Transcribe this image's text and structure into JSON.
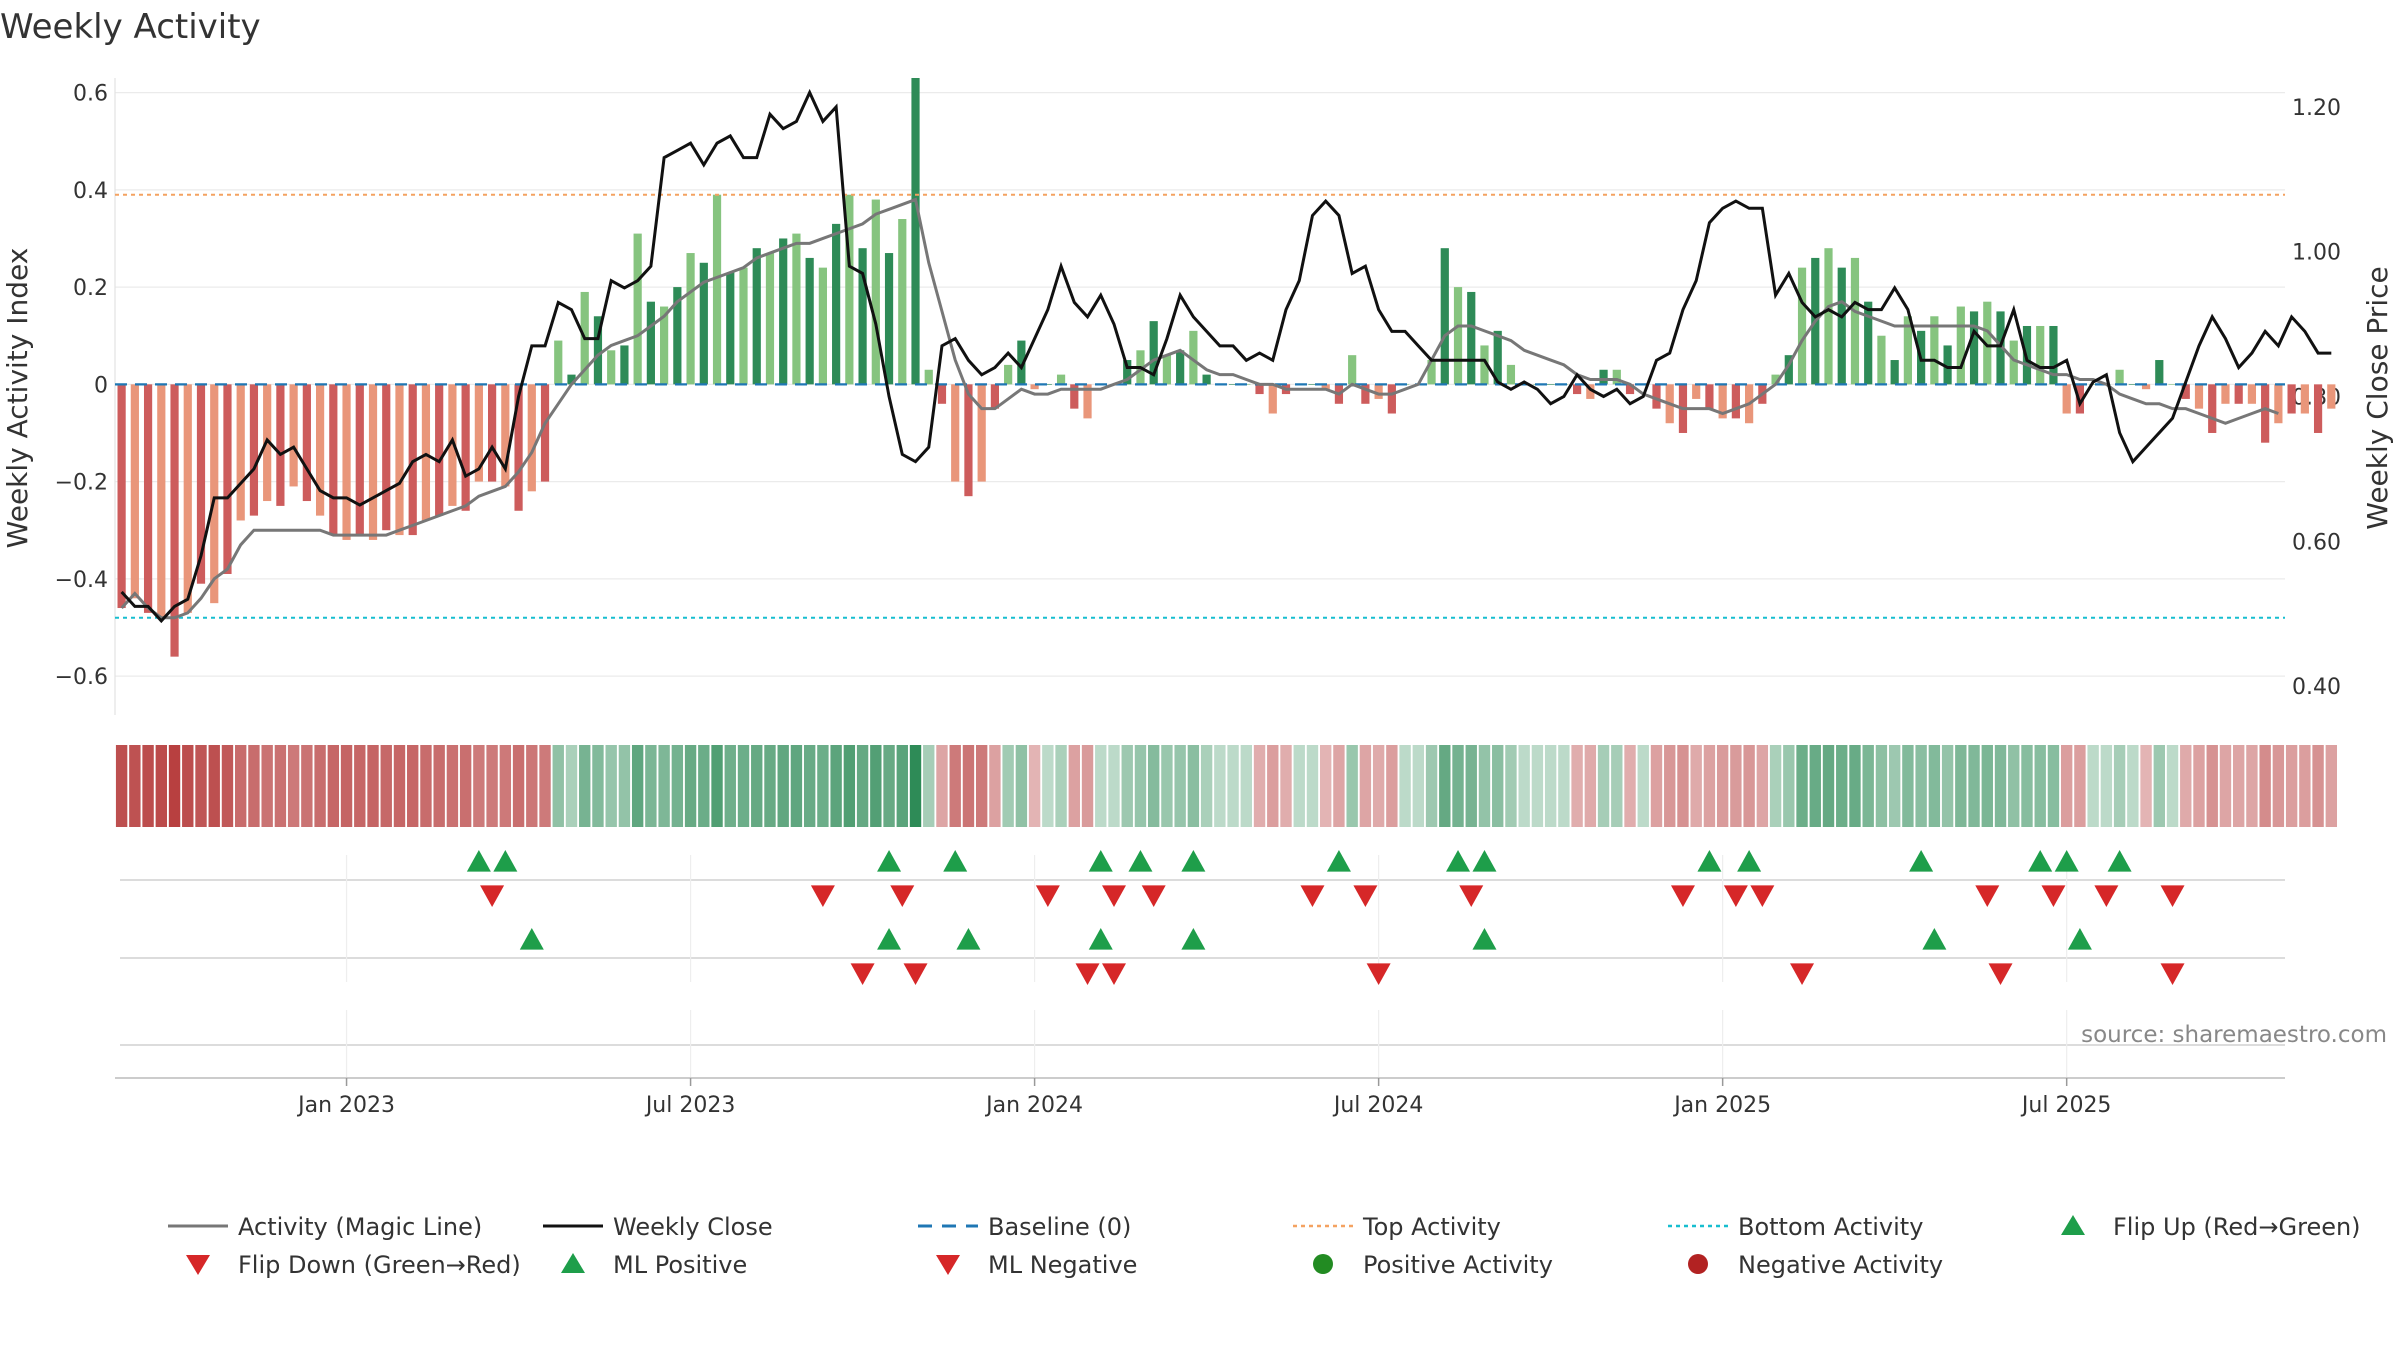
{
  "chart_data": {
    "type": "bar+line",
    "title": "Weekly Activity",
    "ylabel_left": "Weekly Activity Index",
    "ylabel_right": "Weekly Close Price",
    "ylim_left": [
      -0.68,
      0.63
    ],
    "ylim_right": [
      0.36,
      1.24
    ],
    "yticks_left": [
      0.6,
      0.4,
      0.2,
      0,
      -0.2,
      -0.4,
      -0.6
    ],
    "yticks_left_labels": [
      "0.6",
      "0.4",
      "0.2",
      "0",
      "−0.2",
      "−0.4",
      "−0.6"
    ],
    "yticks_right": [
      1.2,
      1.0,
      0.8,
      0.6,
      0.4
    ],
    "yticks_right_labels": [
      "1.20",
      "1.00",
      "0.80",
      "0.60",
      "0.40"
    ],
    "x_start": "2022-09-04",
    "weeks": 164,
    "xticks": [
      {
        "week": 17,
        "label": "Jan 2023"
      },
      {
        "week": 43,
        "label": "Jul 2023"
      },
      {
        "week": 69,
        "label": "Jan 2024"
      },
      {
        "week": 95,
        "label": "Jul 2024"
      },
      {
        "week": 121,
        "label": "Jan 2025"
      },
      {
        "week": 147,
        "label": "Jul 2025"
      }
    ],
    "activity": [
      -0.46,
      -0.44,
      -0.47,
      -0.48,
      -0.56,
      -0.47,
      -0.41,
      -0.45,
      -0.39,
      -0.28,
      -0.27,
      -0.24,
      -0.25,
      -0.21,
      -0.24,
      -0.27,
      -0.31,
      -0.32,
      -0.31,
      -0.32,
      -0.3,
      -0.31,
      -0.31,
      -0.28,
      -0.27,
      -0.25,
      -0.26,
      -0.2,
      -0.2,
      -0.21,
      -0.26,
      -0.22,
      -0.2,
      0.09,
      0.02,
      0.19,
      0.14,
      0.07,
      0.08,
      0.31,
      0.17,
      0.16,
      0.2,
      0.27,
      0.25,
      0.39,
      0.23,
      0.24,
      0.28,
      0.27,
      0.3,
      0.31,
      0.26,
      0.24,
      0.33,
      0.39,
      0.28,
      0.38,
      0.27,
      0.34,
      0.63,
      0.03,
      -0.04,
      -0.2,
      -0.23,
      -0.2,
      -0.05,
      0.04,
      0.09,
      -0.01,
      0.0,
      0.02,
      -0.05,
      -0.07,
      0.0,
      0.0,
      0.05,
      0.07,
      0.13,
      0.06,
      0.07,
      0.11,
      0.02,
      0.0,
      0.0,
      0.0,
      -0.02,
      -0.06,
      -0.02,
      0.0,
      0.0,
      -0.01,
      -0.04,
      0.06,
      -0.04,
      -0.03,
      -0.06,
      0.0,
      0.0,
      0.05,
      0.28,
      0.2,
      0.19,
      0.08,
      0.11,
      0.04,
      0.0,
      0.0,
      0.0,
      0.0,
      -0.02,
      -0.03,
      0.03,
      0.03,
      -0.02,
      0.0,
      -0.05,
      -0.08,
      -0.1,
      -0.03,
      -0.05,
      -0.07,
      -0.07,
      -0.08,
      -0.04,
      0.02,
      0.06,
      0.24,
      0.26,
      0.28,
      0.24,
      0.26,
      0.17,
      0.1,
      0.05,
      0.14,
      0.11,
      0.14,
      0.08,
      0.16,
      0.15,
      0.17,
      0.15,
      0.09,
      0.12,
      0.12,
      0.12,
      -0.06,
      -0.06,
      0.0,
      0.0,
      0.03,
      0.0,
      -0.01,
      0.05,
      0.0,
      -0.03,
      -0.05,
      -0.1,
      -0.04,
      -0.04,
      -0.04,
      -0.12,
      -0.08,
      -0.06,
      -0.06,
      -0.1,
      -0.05
    ],
    "magic_line": [
      -0.46,
      -0.43,
      -0.46,
      -0.48,
      -0.48,
      -0.47,
      -0.44,
      -0.4,
      -0.38,
      -0.33,
      -0.3,
      -0.3,
      -0.3,
      -0.3,
      -0.3,
      -0.3,
      -0.31,
      -0.31,
      -0.31,
      -0.31,
      -0.31,
      -0.3,
      -0.29,
      -0.28,
      -0.27,
      -0.26,
      -0.25,
      -0.23,
      -0.22,
      -0.21,
      -0.18,
      -0.14,
      -0.08,
      -0.04,
      0.0,
      0.03,
      0.06,
      0.08,
      0.09,
      0.1,
      0.12,
      0.14,
      0.17,
      0.19,
      0.21,
      0.22,
      0.23,
      0.24,
      0.26,
      0.27,
      0.28,
      0.29,
      0.29,
      0.3,
      0.31,
      0.32,
      0.33,
      0.35,
      0.36,
      0.37,
      0.38,
      0.25,
      0.15,
      0.05,
      -0.02,
      -0.05,
      -0.05,
      -0.03,
      -0.01,
      -0.02,
      -0.02,
      -0.01,
      -0.01,
      -0.01,
      -0.01,
      0.0,
      0.01,
      0.03,
      0.05,
      0.06,
      0.07,
      0.05,
      0.03,
      0.02,
      0.02,
      0.01,
      0.0,
      0.0,
      -0.01,
      -0.01,
      -0.01,
      -0.01,
      -0.02,
      0.0,
      -0.01,
      -0.02,
      -0.02,
      -0.01,
      0.0,
      0.05,
      0.1,
      0.12,
      0.12,
      0.11,
      0.1,
      0.09,
      0.07,
      0.06,
      0.05,
      0.04,
      0.02,
      0.01,
      0.01,
      0.01,
      0.0,
      -0.02,
      -0.03,
      -0.04,
      -0.05,
      -0.05,
      -0.05,
      -0.06,
      -0.05,
      -0.04,
      -0.02,
      0.0,
      0.04,
      0.09,
      0.13,
      0.16,
      0.17,
      0.15,
      0.14,
      0.13,
      0.12,
      0.12,
      0.12,
      0.12,
      0.12,
      0.12,
      0.12,
      0.11,
      0.08,
      0.05,
      0.04,
      0.03,
      0.02,
      0.02,
      0.01,
      0.01,
      0.0,
      -0.02,
      -0.03,
      -0.04,
      -0.04,
      -0.05,
      -0.05,
      -0.06,
      -0.07,
      -0.08,
      -0.07,
      -0.06,
      -0.05,
      -0.06
    ],
    "close": [
      0.53,
      0.51,
      0.51,
      0.49,
      0.51,
      0.52,
      0.58,
      0.66,
      0.66,
      0.68,
      0.7,
      0.74,
      0.72,
      0.73,
      0.7,
      0.67,
      0.66,
      0.66,
      0.65,
      0.66,
      0.67,
      0.68,
      0.71,
      0.72,
      0.71,
      0.74,
      0.69,
      0.7,
      0.73,
      0.7,
      0.8,
      0.87,
      0.87,
      0.93,
      0.92,
      0.88,
      0.88,
      0.96,
      0.95,
      0.96,
      0.98,
      1.13,
      1.14,
      1.15,
      1.12,
      1.15,
      1.16,
      1.13,
      1.13,
      1.19,
      1.17,
      1.18,
      1.22,
      1.18,
      1.2,
      0.98,
      0.97,
      0.9,
      0.8,
      0.72,
      0.71,
      0.73,
      0.87,
      0.88,
      0.85,
      0.83,
      0.84,
      0.86,
      0.84,
      0.88,
      0.92,
      0.98,
      0.93,
      0.91,
      0.94,
      0.9,
      0.84,
      0.84,
      0.83,
      0.88,
      0.94,
      0.91,
      0.89,
      0.87,
      0.87,
      0.85,
      0.86,
      0.85,
      0.92,
      0.96,
      1.05,
      1.07,
      1.05,
      0.97,
      0.98,
      0.92,
      0.89,
      0.89,
      0.87,
      0.85,
      0.85,
      0.85,
      0.85,
      0.85,
      0.82,
      0.81,
      0.82,
      0.81,
      0.79,
      0.8,
      0.83,
      0.81,
      0.8,
      0.81,
      0.79,
      0.8,
      0.85,
      0.86,
      0.92,
      0.96,
      1.04,
      1.06,
      1.07,
      1.06,
      1.06,
      0.94,
      0.97,
      0.93,
      0.91,
      0.92,
      0.91,
      0.93,
      0.92,
      0.92,
      0.95,
      0.92,
      0.85,
      0.85,
      0.84,
      0.84,
      0.89,
      0.87,
      0.87,
      0.92,
      0.85,
      0.84,
      0.84,
      0.85,
      0.79,
      0.82,
      0.83,
      0.75,
      0.71,
      0.73,
      0.75,
      0.77,
      0.82,
      0.87,
      0.91,
      0.88,
      0.84,
      0.86,
      0.89,
      0.87,
      0.91,
      0.89,
      0.86,
      0.86
    ],
    "baseline": 0,
    "top_activity": 0.39,
    "bottom_activity": -0.48,
    "flip_up_weeks": [
      27,
      29,
      58,
      63,
      74,
      77,
      81,
      92,
      101,
      103,
      120,
      123,
      136,
      145,
      147,
      151
    ],
    "flip_down_weeks": [
      28,
      53,
      59,
      70,
      75,
      78,
      90,
      94,
      102,
      118,
      122,
      124,
      141,
      146,
      150,
      155
    ],
    "ml_positive_weeks": [
      31,
      58,
      64,
      74,
      81,
      103,
      137,
      148
    ],
    "ml_negative_weeks": [
      56,
      60,
      73,
      75,
      95,
      127,
      142,
      155
    ],
    "source": "source: sharemaestro.com",
    "colors": {
      "strong_green": "#2e8b57",
      "light_green": "#86c47f",
      "strong_red": "#cd5c5c",
      "light_red": "#e9967a",
      "magic_line": "#777777",
      "close": "#111111",
      "baseline": "#1f77b4",
      "top": "#f4a261",
      "bottom": "#17becf",
      "flip_up": "#1e9e4a",
      "flip_down": "#d62728",
      "pos_dot": "#228b22",
      "neg_dot": "#b22222"
    },
    "legend": [
      {
        "label": "Activity (Magic Line)",
        "kind": "line",
        "color": "#777777"
      },
      {
        "label": "Weekly Close",
        "kind": "line",
        "color": "#111111"
      },
      {
        "label": "Baseline (0)",
        "kind": "dash",
        "color": "#1f77b4"
      },
      {
        "label": "Top Activity",
        "kind": "dot",
        "color": "#f4a261"
      },
      {
        "label": "Bottom Activity",
        "kind": "dot",
        "color": "#17becf"
      },
      {
        "label": "Flip Up (Red→Green)",
        "kind": "up",
        "color": "#1e9e4a"
      },
      {
        "label": "Flip Down (Green→Red)",
        "kind": "down",
        "color": "#d62728"
      },
      {
        "label": "ML Positive",
        "kind": "up",
        "color": "#1e9e4a"
      },
      {
        "label": "ML Negative",
        "kind": "down",
        "color": "#d62728"
      },
      {
        "label": "Positive Activity",
        "kind": "circle",
        "color": "#228b22"
      },
      {
        "label": "Negative Activity",
        "kind": "circle",
        "color": "#b22222"
      }
    ]
  }
}
